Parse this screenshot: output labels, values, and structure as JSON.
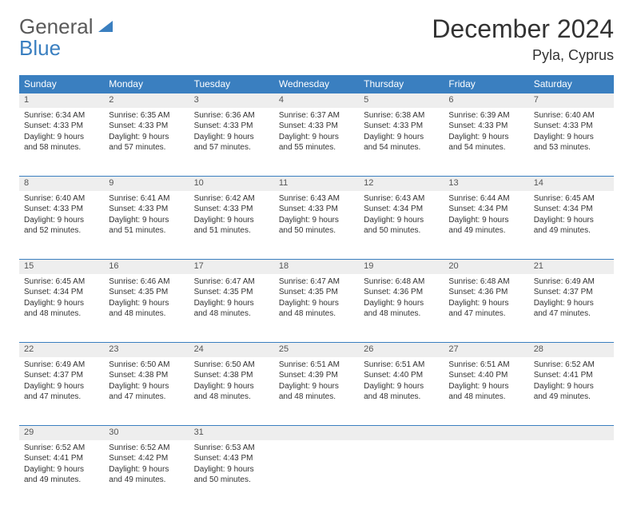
{
  "brand": {
    "word1": "General",
    "word2": "Blue"
  },
  "title": "December 2024",
  "location": "Pyla, Cyprus",
  "day_headers": [
    "Sunday",
    "Monday",
    "Tuesday",
    "Wednesday",
    "Thursday",
    "Friday",
    "Saturday"
  ],
  "colors": {
    "header_bg": "#3a7fc0",
    "header_text": "#ffffff",
    "daynum_bg": "#eeeeee",
    "rule": "#3a7fc0",
    "text": "#333333",
    "logo_gray": "#5a5a5a",
    "logo_blue": "#3a7fc0"
  },
  "weeks": [
    [
      {
        "n": "1",
        "sunrise": "Sunrise: 6:34 AM",
        "sunset": "Sunset: 4:33 PM",
        "day": "Daylight: 9 hours and 58 minutes."
      },
      {
        "n": "2",
        "sunrise": "Sunrise: 6:35 AM",
        "sunset": "Sunset: 4:33 PM",
        "day": "Daylight: 9 hours and 57 minutes."
      },
      {
        "n": "3",
        "sunrise": "Sunrise: 6:36 AM",
        "sunset": "Sunset: 4:33 PM",
        "day": "Daylight: 9 hours and 57 minutes."
      },
      {
        "n": "4",
        "sunrise": "Sunrise: 6:37 AM",
        "sunset": "Sunset: 4:33 PM",
        "day": "Daylight: 9 hours and 55 minutes."
      },
      {
        "n": "5",
        "sunrise": "Sunrise: 6:38 AM",
        "sunset": "Sunset: 4:33 PM",
        "day": "Daylight: 9 hours and 54 minutes."
      },
      {
        "n": "6",
        "sunrise": "Sunrise: 6:39 AM",
        "sunset": "Sunset: 4:33 PM",
        "day": "Daylight: 9 hours and 54 minutes."
      },
      {
        "n": "7",
        "sunrise": "Sunrise: 6:40 AM",
        "sunset": "Sunset: 4:33 PM",
        "day": "Daylight: 9 hours and 53 minutes."
      }
    ],
    [
      {
        "n": "8",
        "sunrise": "Sunrise: 6:40 AM",
        "sunset": "Sunset: 4:33 PM",
        "day": "Daylight: 9 hours and 52 minutes."
      },
      {
        "n": "9",
        "sunrise": "Sunrise: 6:41 AM",
        "sunset": "Sunset: 4:33 PM",
        "day": "Daylight: 9 hours and 51 minutes."
      },
      {
        "n": "10",
        "sunrise": "Sunrise: 6:42 AM",
        "sunset": "Sunset: 4:33 PM",
        "day": "Daylight: 9 hours and 51 minutes."
      },
      {
        "n": "11",
        "sunrise": "Sunrise: 6:43 AM",
        "sunset": "Sunset: 4:33 PM",
        "day": "Daylight: 9 hours and 50 minutes."
      },
      {
        "n": "12",
        "sunrise": "Sunrise: 6:43 AM",
        "sunset": "Sunset: 4:34 PM",
        "day": "Daylight: 9 hours and 50 minutes."
      },
      {
        "n": "13",
        "sunrise": "Sunrise: 6:44 AM",
        "sunset": "Sunset: 4:34 PM",
        "day": "Daylight: 9 hours and 49 minutes."
      },
      {
        "n": "14",
        "sunrise": "Sunrise: 6:45 AM",
        "sunset": "Sunset: 4:34 PM",
        "day": "Daylight: 9 hours and 49 minutes."
      }
    ],
    [
      {
        "n": "15",
        "sunrise": "Sunrise: 6:45 AM",
        "sunset": "Sunset: 4:34 PM",
        "day": "Daylight: 9 hours and 48 minutes."
      },
      {
        "n": "16",
        "sunrise": "Sunrise: 6:46 AM",
        "sunset": "Sunset: 4:35 PM",
        "day": "Daylight: 9 hours and 48 minutes."
      },
      {
        "n": "17",
        "sunrise": "Sunrise: 6:47 AM",
        "sunset": "Sunset: 4:35 PM",
        "day": "Daylight: 9 hours and 48 minutes."
      },
      {
        "n": "18",
        "sunrise": "Sunrise: 6:47 AM",
        "sunset": "Sunset: 4:35 PM",
        "day": "Daylight: 9 hours and 48 minutes."
      },
      {
        "n": "19",
        "sunrise": "Sunrise: 6:48 AM",
        "sunset": "Sunset: 4:36 PM",
        "day": "Daylight: 9 hours and 48 minutes."
      },
      {
        "n": "20",
        "sunrise": "Sunrise: 6:48 AM",
        "sunset": "Sunset: 4:36 PM",
        "day": "Daylight: 9 hours and 47 minutes."
      },
      {
        "n": "21",
        "sunrise": "Sunrise: 6:49 AM",
        "sunset": "Sunset: 4:37 PM",
        "day": "Daylight: 9 hours and 47 minutes."
      }
    ],
    [
      {
        "n": "22",
        "sunrise": "Sunrise: 6:49 AM",
        "sunset": "Sunset: 4:37 PM",
        "day": "Daylight: 9 hours and 47 minutes."
      },
      {
        "n": "23",
        "sunrise": "Sunrise: 6:50 AM",
        "sunset": "Sunset: 4:38 PM",
        "day": "Daylight: 9 hours and 47 minutes."
      },
      {
        "n": "24",
        "sunrise": "Sunrise: 6:50 AM",
        "sunset": "Sunset: 4:38 PM",
        "day": "Daylight: 9 hours and 48 minutes."
      },
      {
        "n": "25",
        "sunrise": "Sunrise: 6:51 AM",
        "sunset": "Sunset: 4:39 PM",
        "day": "Daylight: 9 hours and 48 minutes."
      },
      {
        "n": "26",
        "sunrise": "Sunrise: 6:51 AM",
        "sunset": "Sunset: 4:40 PM",
        "day": "Daylight: 9 hours and 48 minutes."
      },
      {
        "n": "27",
        "sunrise": "Sunrise: 6:51 AM",
        "sunset": "Sunset: 4:40 PM",
        "day": "Daylight: 9 hours and 48 minutes."
      },
      {
        "n": "28",
        "sunrise": "Sunrise: 6:52 AM",
        "sunset": "Sunset: 4:41 PM",
        "day": "Daylight: 9 hours and 49 minutes."
      }
    ],
    [
      {
        "n": "29",
        "sunrise": "Sunrise: 6:52 AM",
        "sunset": "Sunset: 4:41 PM",
        "day": "Daylight: 9 hours and 49 minutes."
      },
      {
        "n": "30",
        "sunrise": "Sunrise: 6:52 AM",
        "sunset": "Sunset: 4:42 PM",
        "day": "Daylight: 9 hours and 49 minutes."
      },
      {
        "n": "31",
        "sunrise": "Sunrise: 6:53 AM",
        "sunset": "Sunset: 4:43 PM",
        "day": "Daylight: 9 hours and 50 minutes."
      },
      null,
      null,
      null,
      null
    ]
  ]
}
